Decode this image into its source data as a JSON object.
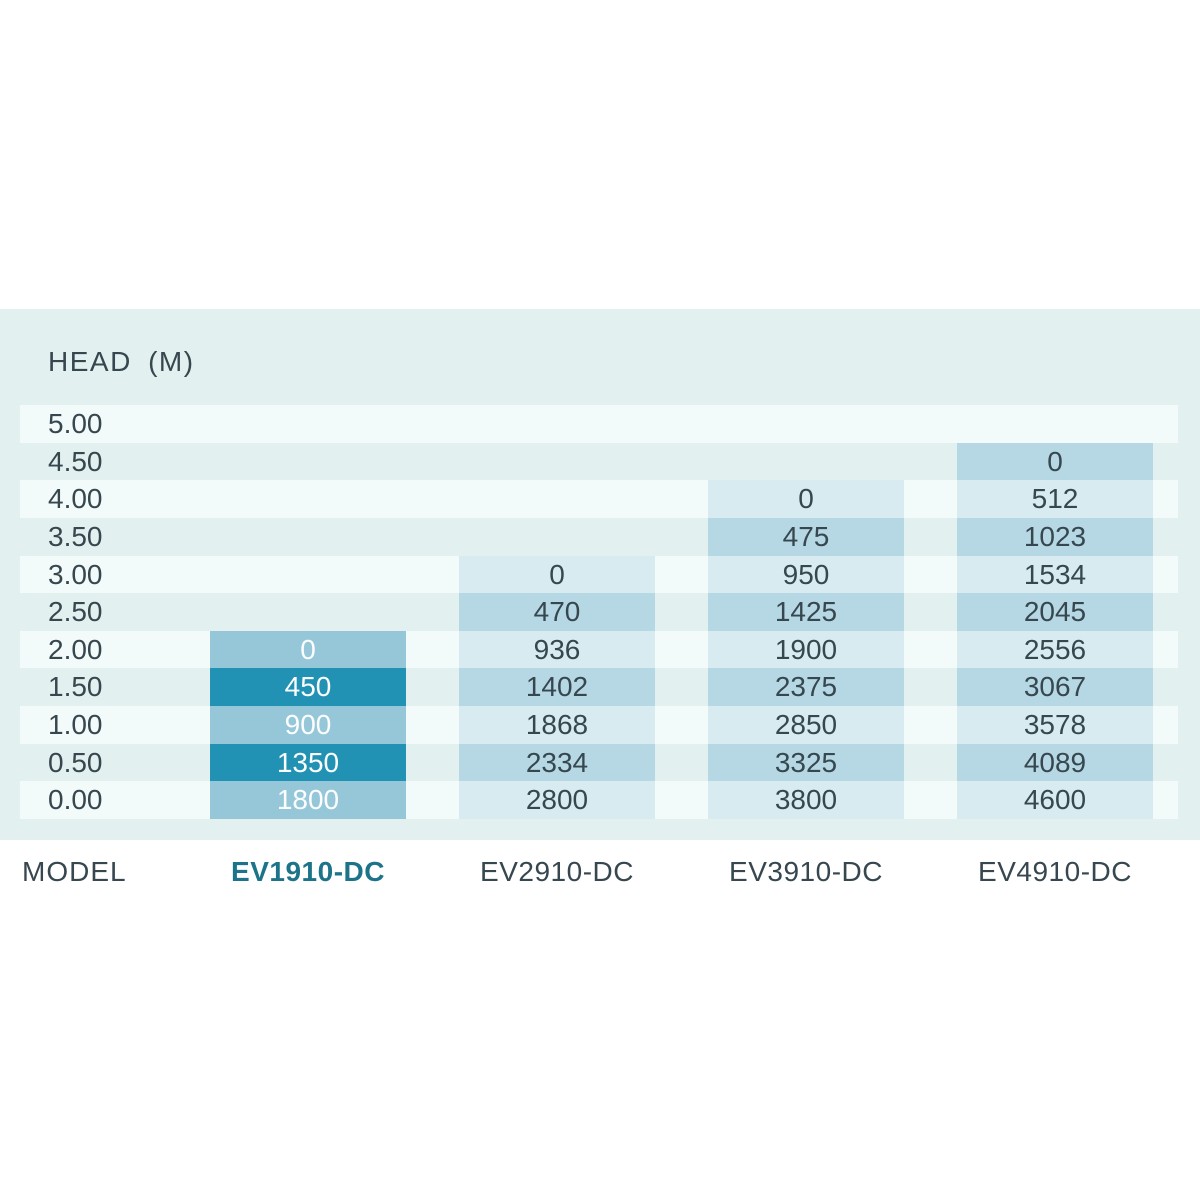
{
  "palette": {
    "panel_bg": "#e3f0f0",
    "stripe_bg": "#f2fafa",
    "cell_light": "#d8ebf1",
    "cell_medium": "#b6d8e4",
    "highlight_light": "#96c7d9",
    "highlight_dark": "#2292b4",
    "text_dark": "#37474f",
    "text_light": "#fbfdfe",
    "model_active": "#1d7389"
  },
  "table": {
    "head_label": "HEAD (M)",
    "model_label": "MODEL",
    "row_labels": [
      "5.00",
      "4.50",
      "4.00",
      "3.50",
      "3.00",
      "2.50",
      "2.00",
      "1.50",
      "1.00",
      "0.50",
      "0.00"
    ],
    "columns": [
      {
        "model": "EV1910-DC",
        "highlighted": true,
        "start_row": 6,
        "values": [
          "0",
          "450",
          "900",
          "1350",
          "1800"
        ]
      },
      {
        "model": "EV2910-DC",
        "highlighted": false,
        "start_row": 4,
        "values": [
          "0",
          "470",
          "936",
          "1402",
          "1868",
          "2334",
          "2800"
        ]
      },
      {
        "model": "EV3910-DC",
        "highlighted": false,
        "start_row": 2,
        "values": [
          "0",
          "475",
          "950",
          "1425",
          "1900",
          "2375",
          "2850",
          "3325",
          "3800"
        ]
      },
      {
        "model": "EV4910-DC",
        "highlighted": false,
        "start_row": 1,
        "values": [
          "0",
          "512",
          "1023",
          "1534",
          "2045",
          "2556",
          "3067",
          "3578",
          "4089",
          "4600"
        ]
      }
    ]
  },
  "chart_data": {
    "type": "table",
    "title": "HEAD (M)",
    "row_axis_label": "HEAD (M)",
    "column_axis_label": "MODEL",
    "heads_m": [
      5.0,
      4.5,
      4.0,
      3.5,
      3.0,
      2.5,
      2.0,
      1.5,
      1.0,
      0.5,
      0.0
    ],
    "series": [
      {
        "name": "EV1910-DC",
        "values": [
          null,
          null,
          null,
          null,
          null,
          null,
          0,
          450,
          900,
          1350,
          1800
        ]
      },
      {
        "name": "EV2910-DC",
        "values": [
          null,
          null,
          null,
          null,
          0,
          470,
          936,
          1402,
          1868,
          2334,
          2800
        ]
      },
      {
        "name": "EV3910-DC",
        "values": [
          null,
          null,
          0,
          475,
          950,
          1425,
          1900,
          2375,
          2850,
          3325,
          3800
        ]
      },
      {
        "name": "EV4910-DC",
        "values": [
          null,
          0,
          512,
          1023,
          1534,
          2045,
          2556,
          3067,
          3578,
          4089,
          4600
        ]
      }
    ],
    "highlighted_series": "EV1910-DC",
    "legend_position": "none",
    "grid": false
  }
}
